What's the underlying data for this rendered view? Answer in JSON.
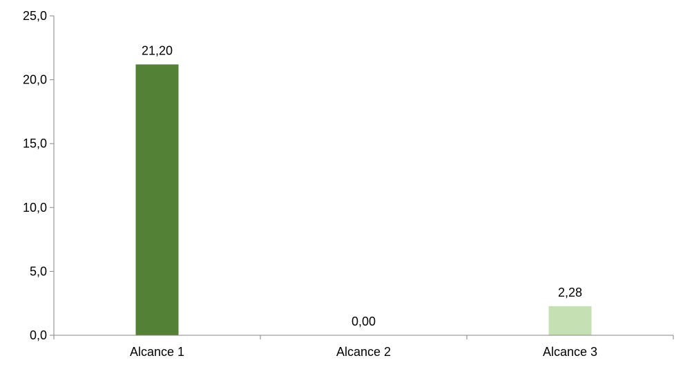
{
  "chart_data": {
    "type": "bar",
    "categories": [
      "Alcance 1",
      "Alcance 2",
      "Alcance 3"
    ],
    "values": [
      21.2,
      0.0,
      2.28
    ],
    "data_labels": [
      "21,20",
      "0,00",
      "2,28"
    ],
    "bar_colors": [
      "#538135",
      "#538135",
      "#C5E0B3"
    ],
    "ylim": [
      0,
      25
    ],
    "yticks": [
      0,
      5,
      10,
      15,
      20,
      25
    ],
    "ytick_labels": [
      "0,0",
      "5,0",
      "10,0",
      "15,0",
      "20,0",
      "25,0"
    ],
    "grid": false,
    "legend": "none",
    "axis_color": "#868686"
  }
}
